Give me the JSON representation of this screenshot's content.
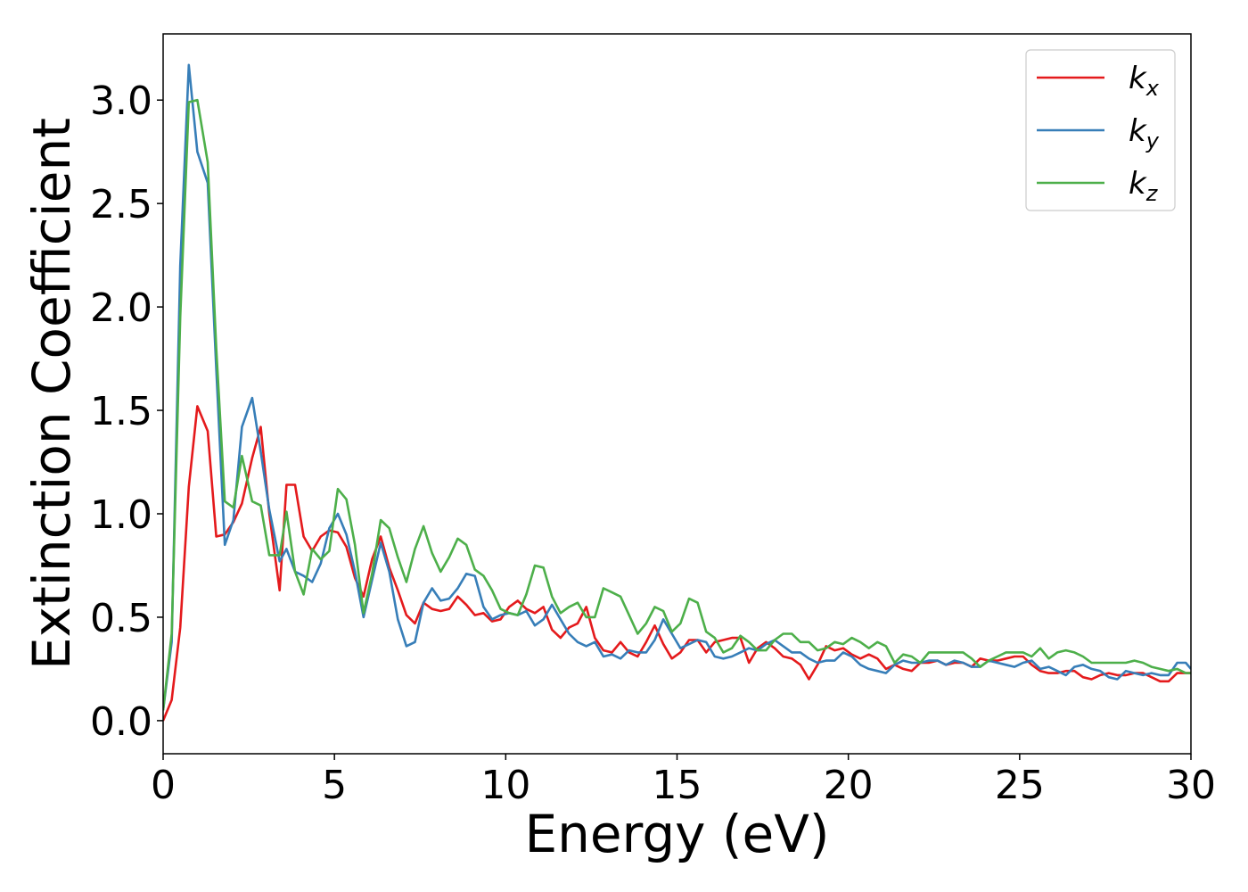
{
  "chart_data": {
    "type": "line",
    "xlabel": "Energy (eV)",
    "ylabel": "Extinction Coefficient",
    "xlim": [
      0,
      30
    ],
    "ylim": [
      -0.16,
      3.32
    ],
    "xticks": [
      0,
      5,
      10,
      15,
      20,
      25,
      30
    ],
    "yticks": [
      0.0,
      0.5,
      1.0,
      1.5,
      2.0,
      2.5,
      3.0
    ],
    "xtick_labels": [
      "0",
      "5",
      "10",
      "15",
      "20",
      "25",
      "30"
    ],
    "ytick_labels": [
      "0.0",
      "0.5",
      "1.0",
      "1.5",
      "2.0",
      "2.5",
      "3.0"
    ],
    "grid": false,
    "legend_position": "top-right",
    "series": [
      {
        "name": "k",
        "subscript": "x",
        "color": "#e41a1c",
        "x": [
          0,
          0.25,
          0.5,
          0.75,
          1.0,
          1.3,
          1.55,
          1.8,
          2.05,
          2.3,
          2.6,
          2.85,
          3.1,
          3.4,
          3.6,
          3.85,
          4.1,
          4.35,
          4.6,
          4.85,
          5.1,
          5.35,
          5.6,
          5.85,
          6.1,
          6.35,
          6.6,
          6.85,
          7.1,
          7.35,
          7.6,
          7.85,
          8.1,
          8.35,
          8.6,
          8.85,
          9.1,
          9.35,
          9.6,
          9.85,
          10.1,
          10.35,
          10.6,
          10.85,
          11.1,
          11.35,
          11.6,
          11.85,
          12.1,
          12.35,
          12.6,
          12.85,
          13.1,
          13.35,
          13.6,
          13.85,
          14.1,
          14.35,
          14.6,
          14.85,
          15.1,
          15.35,
          15.6,
          15.85,
          16.1,
          16.35,
          16.6,
          16.85,
          17.1,
          17.35,
          17.6,
          17.85,
          18.1,
          18.35,
          18.6,
          18.85,
          19.1,
          19.35,
          19.6,
          19.85,
          20.1,
          20.35,
          20.6,
          20.85,
          21.1,
          21.35,
          21.6,
          21.85,
          22.1,
          22.35,
          22.6,
          22.85,
          23.1,
          23.35,
          23.6,
          23.85,
          24.1,
          24.35,
          24.6,
          24.85,
          25.1,
          25.35,
          25.6,
          25.85,
          26.1,
          26.35,
          26.6,
          26.85,
          27.1,
          27.35,
          27.6,
          27.85,
          28.1,
          28.35,
          28.6,
          28.85,
          29.1,
          29.35,
          29.6,
          29.85,
          30.0
        ],
        "y": [
          0.0,
          0.1,
          0.45,
          1.13,
          1.52,
          1.4,
          0.89,
          0.9,
          0.96,
          1.05,
          1.27,
          1.42,
          1.0,
          0.63,
          1.14,
          1.14,
          0.89,
          0.82,
          0.89,
          0.92,
          0.91,
          0.84,
          0.69,
          0.6,
          0.78,
          0.89,
          0.74,
          0.63,
          0.51,
          0.47,
          0.57,
          0.54,
          0.53,
          0.54,
          0.6,
          0.56,
          0.51,
          0.52,
          0.48,
          0.49,
          0.55,
          0.58,
          0.54,
          0.52,
          0.55,
          0.44,
          0.4,
          0.45,
          0.47,
          0.55,
          0.4,
          0.34,
          0.33,
          0.38,
          0.33,
          0.31,
          0.38,
          0.46,
          0.37,
          0.3,
          0.33,
          0.39,
          0.39,
          0.33,
          0.38,
          0.39,
          0.4,
          0.4,
          0.28,
          0.35,
          0.38,
          0.35,
          0.31,
          0.3,
          0.27,
          0.2,
          0.27,
          0.36,
          0.34,
          0.35,
          0.32,
          0.3,
          0.32,
          0.3,
          0.25,
          0.27,
          0.25,
          0.24,
          0.28,
          0.28,
          0.29,
          0.27,
          0.28,
          0.28,
          0.26,
          0.3,
          0.29,
          0.29,
          0.3,
          0.31,
          0.31,
          0.27,
          0.24,
          0.23,
          0.23,
          0.24,
          0.24,
          0.21,
          0.2,
          0.22,
          0.23,
          0.22,
          0.22,
          0.23,
          0.23,
          0.21,
          0.19,
          0.19,
          0.23,
          0.23,
          0.23
        ]
      },
      {
        "name": "k",
        "subscript": "y",
        "color": "#377eb8",
        "x": [
          0,
          0.25,
          0.5,
          0.75,
          1.0,
          1.3,
          1.55,
          1.8,
          2.05,
          2.3,
          2.6,
          2.85,
          3.1,
          3.4,
          3.6,
          3.85,
          4.1,
          4.35,
          4.6,
          4.85,
          5.1,
          5.35,
          5.6,
          5.85,
          6.1,
          6.35,
          6.6,
          6.85,
          7.1,
          7.35,
          7.6,
          7.85,
          8.1,
          8.35,
          8.6,
          8.85,
          9.1,
          9.35,
          9.6,
          9.85,
          10.1,
          10.35,
          10.6,
          10.85,
          11.1,
          11.35,
          11.6,
          11.85,
          12.1,
          12.35,
          12.6,
          12.85,
          13.1,
          13.35,
          13.6,
          13.85,
          14.1,
          14.35,
          14.6,
          14.85,
          15.1,
          15.35,
          15.6,
          15.85,
          16.1,
          16.35,
          16.6,
          16.85,
          17.1,
          17.35,
          17.6,
          17.85,
          18.1,
          18.35,
          18.6,
          18.85,
          19.1,
          19.35,
          19.6,
          19.85,
          20.1,
          20.35,
          20.6,
          20.85,
          21.1,
          21.35,
          21.6,
          21.85,
          22.1,
          22.35,
          22.6,
          22.85,
          23.1,
          23.35,
          23.6,
          23.85,
          24.1,
          24.35,
          24.6,
          24.85,
          25.1,
          25.35,
          25.6,
          25.85,
          26.1,
          26.35,
          26.6,
          26.85,
          27.1,
          27.35,
          27.6,
          27.85,
          28.1,
          28.35,
          28.6,
          28.85,
          29.1,
          29.35,
          29.6,
          29.85,
          30.0
        ],
        "y": [
          0.05,
          0.38,
          2.2,
          3.17,
          2.75,
          2.6,
          1.7,
          0.85,
          0.97,
          1.42,
          1.56,
          1.3,
          1.02,
          0.77,
          0.83,
          0.72,
          0.7,
          0.67,
          0.76,
          0.93,
          1.0,
          0.9,
          0.72,
          0.5,
          0.68,
          0.86,
          0.72,
          0.49,
          0.36,
          0.38,
          0.57,
          0.64,
          0.58,
          0.59,
          0.64,
          0.71,
          0.7,
          0.55,
          0.49,
          0.51,
          0.52,
          0.51,
          0.53,
          0.46,
          0.49,
          0.56,
          0.49,
          0.42,
          0.38,
          0.36,
          0.38,
          0.31,
          0.32,
          0.3,
          0.34,
          0.33,
          0.33,
          0.39,
          0.49,
          0.42,
          0.35,
          0.37,
          0.39,
          0.38,
          0.31,
          0.3,
          0.31,
          0.33,
          0.35,
          0.34,
          0.37,
          0.39,
          0.36,
          0.33,
          0.33,
          0.3,
          0.28,
          0.29,
          0.29,
          0.33,
          0.31,
          0.27,
          0.25,
          0.24,
          0.23,
          0.27,
          0.29,
          0.28,
          0.28,
          0.29,
          0.29,
          0.27,
          0.29,
          0.28,
          0.26,
          0.26,
          0.29,
          0.28,
          0.27,
          0.26,
          0.28,
          0.29,
          0.25,
          0.26,
          0.24,
          0.22,
          0.26,
          0.27,
          0.25,
          0.24,
          0.21,
          0.2,
          0.24,
          0.23,
          0.22,
          0.23,
          0.22,
          0.22,
          0.28,
          0.28,
          0.25
        ]
      },
      {
        "name": "k",
        "subscript": "z",
        "color": "#4daf4a",
        "x": [
          0,
          0.25,
          0.5,
          0.75,
          1.0,
          1.3,
          1.55,
          1.8,
          2.05,
          2.3,
          2.6,
          2.85,
          3.1,
          3.4,
          3.6,
          3.85,
          4.1,
          4.35,
          4.6,
          4.85,
          5.1,
          5.35,
          5.6,
          5.85,
          6.1,
          6.35,
          6.6,
          6.85,
          7.1,
          7.35,
          7.6,
          7.85,
          8.1,
          8.35,
          8.6,
          8.85,
          9.1,
          9.35,
          9.6,
          9.85,
          10.1,
          10.35,
          10.6,
          10.85,
          11.1,
          11.35,
          11.6,
          11.85,
          12.1,
          12.35,
          12.6,
          12.85,
          13.1,
          13.35,
          13.6,
          13.85,
          14.1,
          14.35,
          14.6,
          14.85,
          15.1,
          15.35,
          15.6,
          15.85,
          16.1,
          16.35,
          16.6,
          16.85,
          17.1,
          17.35,
          17.6,
          17.85,
          18.1,
          18.35,
          18.6,
          18.85,
          19.1,
          19.35,
          19.6,
          19.85,
          20.1,
          20.35,
          20.6,
          20.85,
          21.1,
          21.35,
          21.6,
          21.85,
          22.1,
          22.35,
          22.6,
          22.85,
          23.1,
          23.35,
          23.6,
          23.85,
          24.1,
          24.35,
          24.6,
          24.85,
          25.1,
          25.35,
          25.6,
          25.85,
          26.1,
          26.35,
          26.6,
          26.85,
          27.1,
          27.35,
          27.6,
          27.85,
          28.1,
          28.35,
          28.6,
          28.85,
          29.1,
          29.35,
          29.6,
          29.85,
          30.0
        ],
        "y": [
          0.05,
          0.42,
          1.95,
          2.99,
          3.0,
          2.7,
          1.8,
          1.06,
          1.03,
          1.28,
          1.06,
          1.04,
          0.8,
          0.8,
          1.01,
          0.72,
          0.61,
          0.83,
          0.78,
          0.82,
          1.12,
          1.07,
          0.85,
          0.52,
          0.71,
          0.97,
          0.93,
          0.79,
          0.67,
          0.83,
          0.94,
          0.81,
          0.72,
          0.79,
          0.88,
          0.85,
          0.73,
          0.7,
          0.63,
          0.54,
          0.52,
          0.51,
          0.61,
          0.75,
          0.74,
          0.6,
          0.52,
          0.55,
          0.57,
          0.5,
          0.5,
          0.64,
          0.62,
          0.6,
          0.51,
          0.42,
          0.47,
          0.55,
          0.53,
          0.43,
          0.47,
          0.59,
          0.57,
          0.43,
          0.4,
          0.33,
          0.35,
          0.41,
          0.38,
          0.34,
          0.34,
          0.39,
          0.42,
          0.42,
          0.38,
          0.38,
          0.34,
          0.35,
          0.38,
          0.37,
          0.4,
          0.38,
          0.35,
          0.38,
          0.36,
          0.28,
          0.32,
          0.31,
          0.28,
          0.33,
          0.33,
          0.33,
          0.33,
          0.33,
          0.3,
          0.26,
          0.29,
          0.31,
          0.33,
          0.33,
          0.33,
          0.31,
          0.35,
          0.3,
          0.33,
          0.34,
          0.33,
          0.31,
          0.28,
          0.28,
          0.28,
          0.28,
          0.28,
          0.29,
          0.28,
          0.26,
          0.25,
          0.24,
          0.25,
          0.23,
          0.23
        ]
      }
    ]
  }
}
